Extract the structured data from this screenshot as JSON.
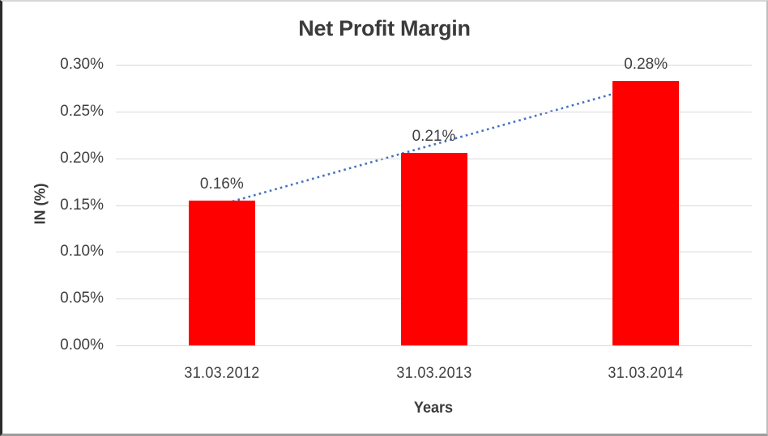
{
  "chart_data": {
    "type": "bar",
    "title": "Net Profit Margin",
    "xlabel": "Years",
    "ylabel": "IN (%)",
    "categories": [
      "31.03.2012",
      "31.03.2013",
      "31.03.2014"
    ],
    "values": [
      0.155,
      0.206,
      0.283
    ],
    "data_labels": [
      "0.16%",
      "0.21%",
      "0.28%"
    ],
    "ytick_labels": [
      "0.00%",
      "0.05%",
      "0.10%",
      "0.15%",
      "0.20%",
      "0.25%",
      "0.30%"
    ],
    "ylim": [
      0,
      0.3
    ],
    "grid": true,
    "legend": "none",
    "colors": {
      "bar": "#ff0000",
      "trendline": "#4472c4",
      "gridline": "#d9d9d9",
      "text": "#404040"
    },
    "trendline": {
      "type": "linear",
      "style": "dotted",
      "start_value": 0.1507,
      "end_value": 0.2787
    }
  }
}
